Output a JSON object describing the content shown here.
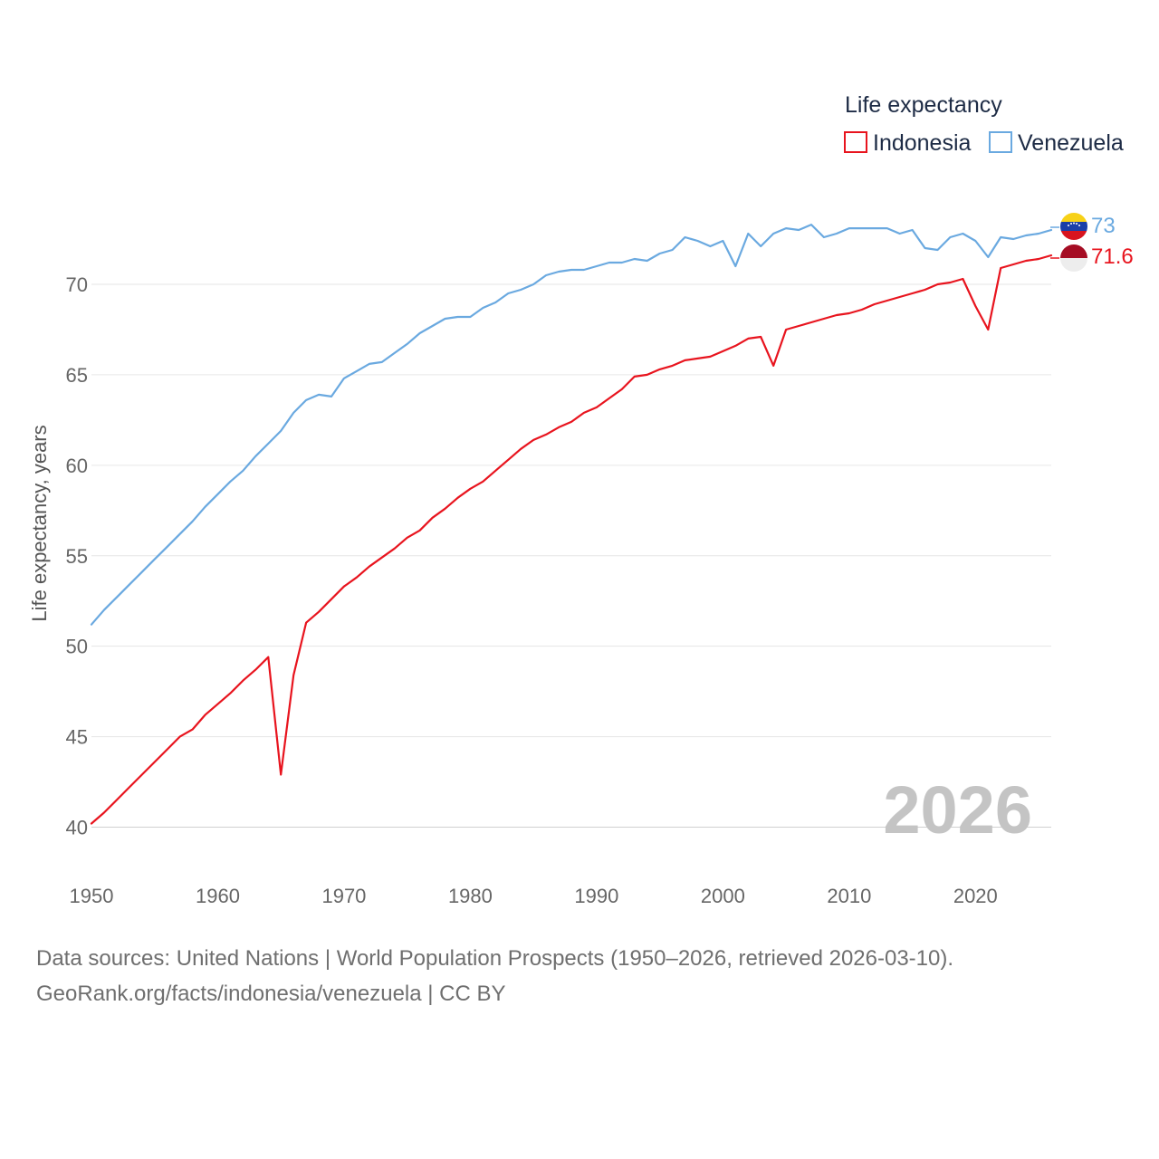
{
  "chart_data": {
    "type": "line",
    "legend_title": "Life expectancy",
    "ylabel": "Life expectancy, years",
    "xlabel": "",
    "ylim": [
      40,
      75
    ],
    "xlim": [
      1950,
      2026
    ],
    "y_ticks": [
      40,
      45,
      50,
      55,
      60,
      65,
      70
    ],
    "x_ticks": [
      1950,
      1960,
      1970,
      1980,
      1990,
      2000,
      2010,
      2020
    ],
    "grid": true,
    "legend_position": "top-right",
    "year_label": "2026",
    "x": [
      1950,
      1951,
      1952,
      1953,
      1954,
      1955,
      1956,
      1957,
      1958,
      1959,
      1960,
      1961,
      1962,
      1963,
      1964,
      1965,
      1966,
      1967,
      1968,
      1969,
      1970,
      1971,
      1972,
      1973,
      1974,
      1975,
      1976,
      1977,
      1978,
      1979,
      1980,
      1981,
      1982,
      1983,
      1984,
      1985,
      1986,
      1987,
      1988,
      1989,
      1990,
      1991,
      1992,
      1993,
      1994,
      1995,
      1996,
      1997,
      1998,
      1999,
      2000,
      2001,
      2002,
      2003,
      2004,
      2005,
      2006,
      2007,
      2008,
      2009,
      2010,
      2011,
      2012,
      2013,
      2014,
      2015,
      2016,
      2017,
      2018,
      2019,
      2020,
      2021,
      2022,
      2023,
      2024,
      2025,
      2026
    ],
    "series": [
      {
        "name": "Indonesia",
        "color": "#e8141e",
        "end_label": "71.6",
        "flag": "indonesia-flag-icon",
        "values": [
          40.2,
          40.8,
          41.5,
          42.2,
          42.9,
          43.6,
          44.3,
          45.0,
          45.4,
          46.2,
          46.8,
          47.4,
          48.1,
          48.7,
          49.4,
          42.9,
          48.4,
          51.3,
          51.9,
          52.6,
          53.3,
          53.8,
          54.4,
          54.9,
          55.4,
          56.0,
          56.4,
          57.1,
          57.6,
          58.2,
          58.7,
          59.1,
          59.7,
          60.3,
          60.9,
          61.4,
          61.7,
          62.1,
          62.4,
          62.9,
          63.2,
          63.7,
          64.2,
          64.9,
          65.0,
          65.3,
          65.5,
          65.8,
          65.9,
          66.0,
          66.3,
          66.6,
          67.0,
          67.1,
          65.5,
          67.5,
          67.7,
          67.9,
          68.1,
          68.3,
          68.4,
          68.6,
          68.9,
          69.1,
          69.3,
          69.5,
          69.7,
          70.0,
          70.1,
          70.3,
          68.8,
          67.5,
          70.9,
          71.1,
          71.3,
          71.4,
          71.6
        ]
      },
      {
        "name": "Venezuela",
        "color": "#6aa9e0",
        "end_label": "73",
        "flag": "venezuela-flag-icon",
        "values": [
          51.2,
          52.0,
          52.7,
          53.4,
          54.1,
          54.8,
          55.5,
          56.2,
          56.9,
          57.7,
          58.4,
          59.1,
          59.7,
          60.5,
          61.2,
          61.9,
          62.9,
          63.6,
          63.9,
          63.8,
          64.8,
          65.2,
          65.6,
          65.7,
          66.2,
          66.7,
          67.3,
          67.7,
          68.1,
          68.2,
          68.2,
          68.7,
          69.0,
          69.5,
          69.7,
          70.0,
          70.5,
          70.7,
          70.8,
          70.8,
          71.0,
          71.2,
          71.2,
          71.4,
          71.3,
          71.7,
          71.9,
          72.6,
          72.4,
          72.1,
          72.4,
          71.0,
          72.8,
          72.1,
          72.8,
          73.1,
          73.0,
          73.3,
          72.6,
          72.8,
          73.1,
          73.1,
          73.1,
          73.1,
          72.8,
          73.0,
          72.0,
          71.9,
          72.6,
          72.8,
          72.4,
          71.5,
          72.6,
          72.5,
          72.7,
          72.8,
          73.0
        ]
      }
    ]
  },
  "footer": {
    "source_line": "Data sources: United Nations | World Population Prospects (1950–2026, retrieved 2026-03-10).",
    "credit_line": "GeoRank.org/facts/indonesia/venezuela | CC BY"
  }
}
